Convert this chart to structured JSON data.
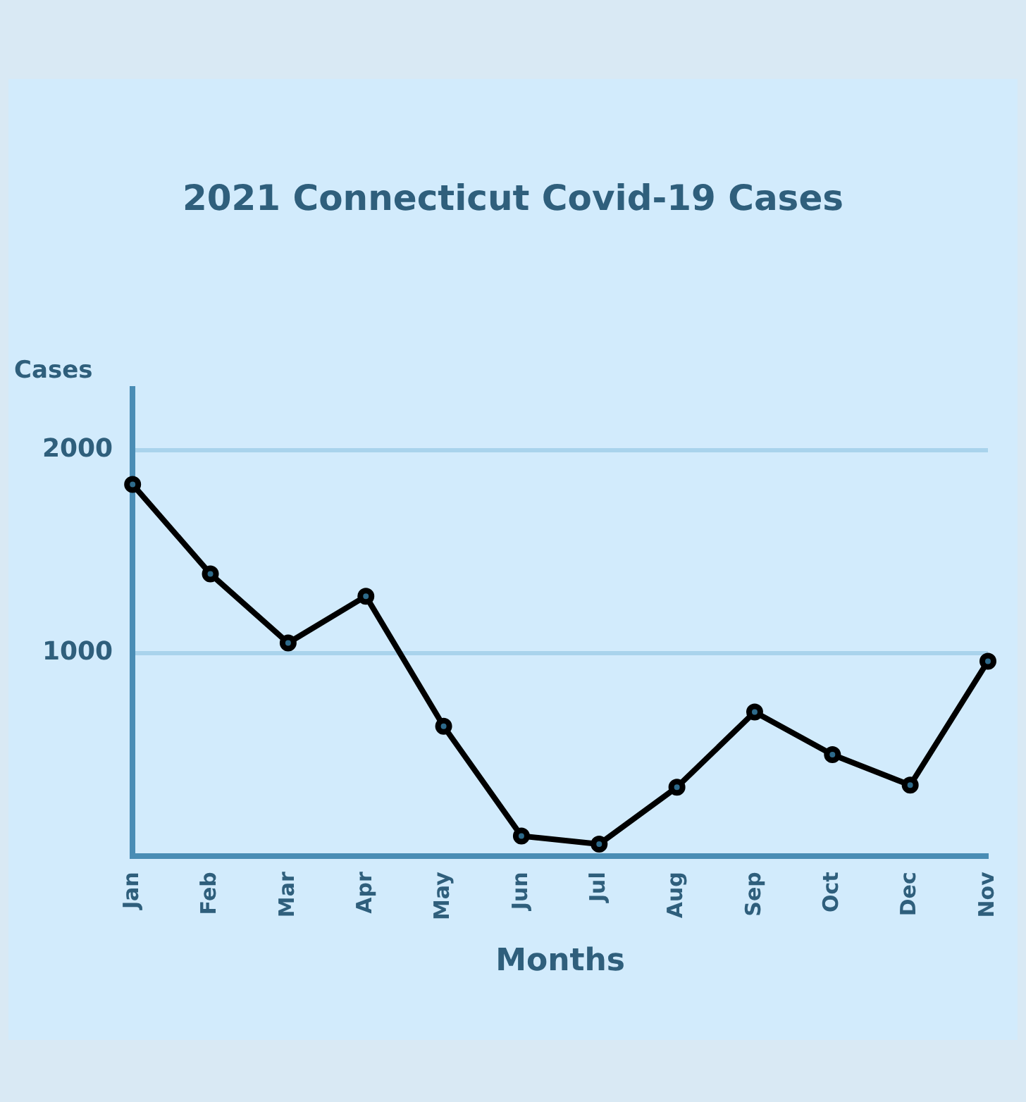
{
  "chart_data": {
    "type": "line",
    "title": "2021 Connecticut Covid-19 Cases",
    "xlabel": "Months",
    "ylabel": "Cases",
    "categories": [
      "Jan",
      "Feb",
      "Mar",
      "Apr",
      "May",
      "Jun",
      "Jul",
      "Aug",
      "Sep",
      "Oct",
      "Dec",
      "Nov"
    ],
    "series": [
      {
        "color": "#000000",
        "values": [
          1830,
          1390,
          1050,
          1280,
          640,
          100,
          60,
          340,
          710,
          500,
          350,
          960
        ]
      }
    ],
    "ylim": [
      0,
      2300
    ],
    "yticks": [
      1000,
      2000
    ],
    "grid": "y",
    "marker": "circle",
    "line_style": "solid",
    "legend": false
  }
}
